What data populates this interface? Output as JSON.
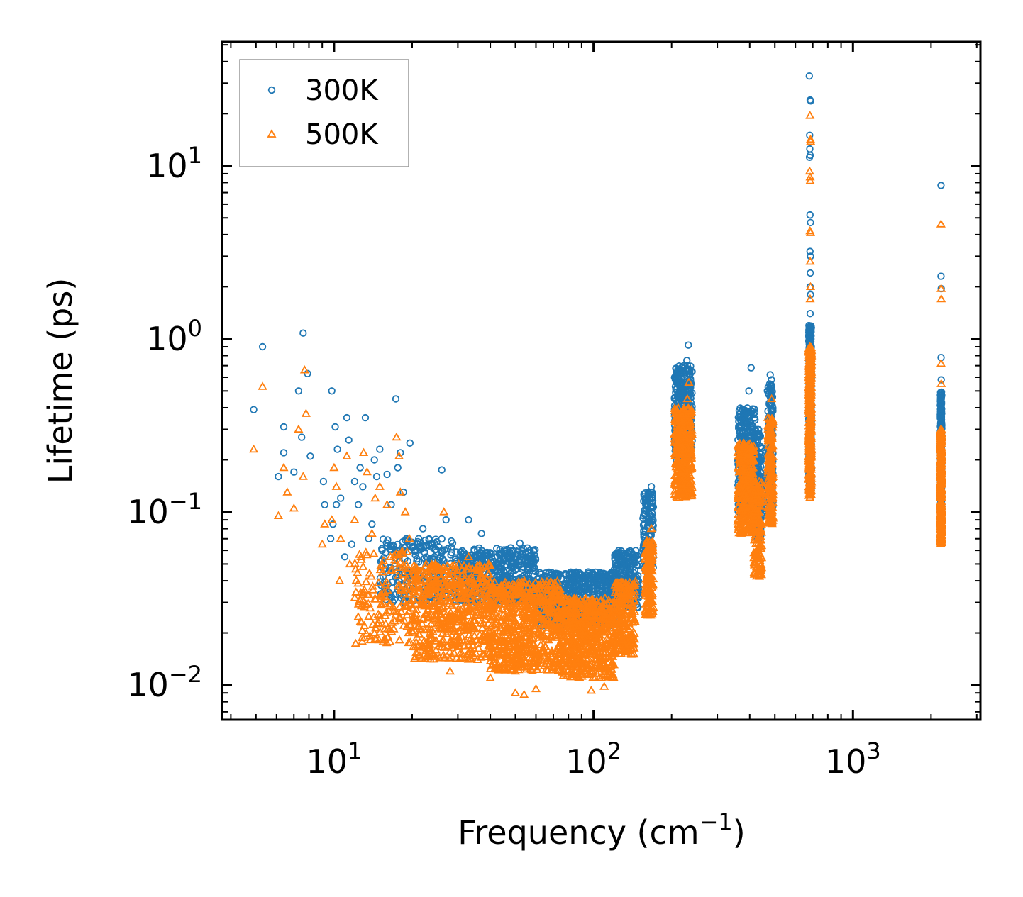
{
  "chart_data": {
    "type": "scatter",
    "xscale": "log",
    "yscale": "log",
    "xlim": [
      3.7,
      3100
    ],
    "ylim": [
      0.0063,
      52
    ],
    "xlabel": {
      "main": "Frequency (cm",
      "sup": "−1",
      "end": ")"
    },
    "ylabel": "Lifetime (ps)",
    "x_ticks": [
      {
        "value": 10,
        "base": "10",
        "exp": "1"
      },
      {
        "value": 100,
        "base": "10",
        "exp": "2"
      },
      {
        "value": 1000,
        "base": "10",
        "exp": "3"
      }
    ],
    "y_ticks": [
      {
        "value": 0.01,
        "base": "10",
        "exp": "−2"
      },
      {
        "value": 0.1,
        "base": "10",
        "exp": "−1"
      },
      {
        "value": 1,
        "base": "10",
        "exp": "0"
      },
      {
        "value": 10,
        "base": "10",
        "exp": "1"
      }
    ],
    "legend_position": "top-left",
    "series": [
      {
        "name": "300K",
        "color": "#1f77b4",
        "marker": "circle",
        "points": [
          [
            4.9,
            0.39
          ],
          [
            5.3,
            0.9
          ],
          [
            6.1,
            0.16
          ],
          [
            6.4,
            0.31
          ],
          [
            6.4,
            0.22
          ],
          [
            7.0,
            0.17
          ],
          [
            7.3,
            0.5
          ],
          [
            7.5,
            0.27
          ],
          [
            7.6,
            1.08
          ],
          [
            7.9,
            0.63
          ],
          [
            8.1,
            0.21
          ],
          [
            9.1,
            0.15
          ],
          [
            9.2,
            0.11
          ],
          [
            9.7,
            0.07
          ],
          [
            9.8,
            0.5
          ],
          [
            9.9,
            0.085
          ],
          [
            10.1,
            0.31
          ],
          [
            10.2,
            0.11
          ],
          [
            10.3,
            0.23
          ],
          [
            10.6,
            0.12
          ],
          [
            11.0,
            0.055
          ],
          [
            11.2,
            0.35
          ],
          [
            11.4,
            0.26
          ],
          [
            11.7,
            0.065
          ],
          [
            12.0,
            0.15
          ],
          [
            12.4,
            0.11
          ],
          [
            12.6,
            0.18
          ],
          [
            12.9,
            0.14
          ],
          [
            13.2,
            0.35
          ],
          [
            13.6,
            0.07
          ],
          [
            14.0,
            0.085
          ],
          [
            14.3,
            0.2
          ],
          [
            14.6,
            0.16
          ],
          [
            15.0,
            0.23
          ],
          [
            15.3,
            0.06
          ],
          [
            16.0,
            0.165
          ],
          [
            16.6,
            0.11
          ],
          [
            17.3,
            0.45
          ],
          [
            17.6,
            0.18
          ],
          [
            18.0,
            0.22
          ],
          [
            18.5,
            0.13
          ],
          [
            19.0,
            0.07
          ],
          [
            19.6,
            0.25
          ],
          [
            20.5,
            0.06
          ],
          [
            21.2,
            0.07
          ],
          [
            22.0,
            0.08
          ],
          [
            26.0,
            0.175
          ],
          [
            27.0,
            0.09
          ],
          [
            33.0,
            0.09
          ],
          [
            37.0,
            0.075
          ],
          [
            48.0,
            0.062
          ],
          [
            52.0,
            0.066
          ],
          [
            57.0,
            0.06
          ],
          [
            167,
            0.14
          ],
          [
            168,
            0.13
          ],
          [
            232,
            0.92
          ],
          [
            229,
            0.75
          ],
          [
            210,
            0.4
          ],
          [
            220,
            0.5
          ],
          [
            405,
            0.68
          ],
          [
            397,
            0.5
          ],
          [
            392,
            0.38
          ],
          [
            480,
            0.62
          ],
          [
            485,
            0.58
          ],
          [
            468,
            0.5
          ],
          [
            679,
            33
          ],
          [
            687,
            23.7
          ],
          [
            684,
            24.0
          ],
          [
            681,
            15
          ],
          [
            682,
            12.5
          ],
          [
            684,
            11.5
          ],
          [
            680,
            11.2
          ],
          [
            683,
            5.2
          ],
          [
            686,
            4.7
          ],
          [
            683,
            3.2
          ],
          [
            686,
            3.0
          ],
          [
            685,
            2.4
          ],
          [
            684,
            2.0
          ],
          [
            686,
            1.8
          ],
          [
            684,
            1.4
          ],
          [
            2185,
            7.7
          ],
          [
            2185,
            2.3
          ],
          [
            2188,
            1.95
          ],
          [
            2186,
            0.78
          ],
          [
            2188,
            0.58
          ]
        ],
        "bands": [
          {
            "xmin": 15,
            "xmax": 30,
            "ylo": 0.03,
            "yhi": 0.07,
            "n": 260
          },
          {
            "xmin": 30,
            "xmax": 60,
            "ylo": 0.03,
            "yhi": 0.062,
            "n": 520
          },
          {
            "xmin": 60,
            "xmax": 120,
            "ylo": 0.022,
            "yhi": 0.045,
            "n": 620
          },
          {
            "xmin": 120,
            "xmax": 150,
            "ylo": 0.028,
            "yhi": 0.06,
            "n": 220
          },
          {
            "xmin": 155,
            "xmax": 170,
            "ylo": 0.045,
            "yhi": 0.13,
            "n": 140
          },
          {
            "xmin": 205,
            "xmax": 240,
            "ylo": 0.2,
            "yhi": 0.7,
            "n": 340
          },
          {
            "xmin": 360,
            "xmax": 420,
            "ylo": 0.1,
            "yhi": 0.4,
            "n": 300
          },
          {
            "xmin": 420,
            "xmax": 445,
            "ylo": 0.07,
            "yhi": 0.3,
            "n": 140
          },
          {
            "xmin": 470,
            "xmax": 492,
            "ylo": 0.1,
            "yhi": 0.55,
            "n": 180
          },
          {
            "xmin": 676,
            "xmax": 692,
            "ylo": 0.13,
            "yhi": 1.2,
            "n": 420
          },
          {
            "xmin": 2170,
            "xmax": 2200,
            "ylo": 0.085,
            "yhi": 0.5,
            "n": 320
          }
        ]
      },
      {
        "name": "500K",
        "color": "#ff7f0e",
        "marker": "triangle",
        "points": [
          [
            4.9,
            0.23
          ],
          [
            5.3,
            0.53
          ],
          [
            6.1,
            0.095
          ],
          [
            6.4,
            0.18
          ],
          [
            6.6,
            0.13
          ],
          [
            7.0,
            0.105
          ],
          [
            7.3,
            0.3
          ],
          [
            7.6,
            0.16
          ],
          [
            7.7,
            0.66
          ],
          [
            7.8,
            0.37
          ],
          [
            9.0,
            0.065
          ],
          [
            9.2,
            0.085
          ],
          [
            9.8,
            0.09
          ],
          [
            10.0,
            0.18
          ],
          [
            10.2,
            0.14
          ],
          [
            10.5,
            0.04
          ],
          [
            10.6,
            0.07
          ],
          [
            11.2,
            0.21
          ],
          [
            11.5,
            0.05
          ],
          [
            12.0,
            0.09
          ],
          [
            12.7,
            0.055
          ],
          [
            13.0,
            0.22
          ],
          [
            13.4,
            0.17
          ],
          [
            14.0,
            0.075
          ],
          [
            14.4,
            0.12
          ],
          [
            15.0,
            0.14
          ],
          [
            16.0,
            0.11
          ],
          [
            16.5,
            0.055
          ],
          [
            17.4,
            0.27
          ],
          [
            17.8,
            0.21
          ],
          [
            18.0,
            0.13
          ],
          [
            18.8,
            0.1
          ],
          [
            19.5,
            0.07
          ],
          [
            24.0,
            0.015
          ],
          [
            26.5,
            0.1
          ],
          [
            28.0,
            0.012
          ],
          [
            33.0,
            0.055
          ],
          [
            40.0,
            0.011
          ],
          [
            50.0,
            0.009
          ],
          [
            54.0,
            0.0088
          ],
          [
            60.0,
            0.0095
          ],
          [
            98.0,
            0.0093
          ],
          [
            110,
            0.0098
          ],
          [
            167,
            0.08
          ],
          [
            169,
            0.06
          ],
          [
            233,
            0.56
          ],
          [
            220,
            0.3
          ],
          [
            230,
            0.45
          ],
          [
            215,
            0.15
          ],
          [
            395,
            0.22
          ],
          [
            402,
            0.15
          ],
          [
            486,
            0.45
          ],
          [
            470,
            0.35
          ],
          [
            683,
            19.5
          ],
          [
            686,
            14.2
          ],
          [
            687,
            13.8
          ],
          [
            681,
            9.3
          ],
          [
            684,
            8.6
          ],
          [
            684,
            8.2
          ],
          [
            683,
            4.2
          ],
          [
            686,
            4.1
          ],
          [
            684,
            2.8
          ],
          [
            686,
            2.0
          ],
          [
            684,
            1.7
          ],
          [
            2185,
            4.6
          ],
          [
            2187,
            1.95
          ],
          [
            2188,
            1.7
          ],
          [
            2186,
            0.72
          ],
          [
            2188,
            0.55
          ]
        ],
        "bands": [
          {
            "xmin": 12,
            "xmax": 20,
            "ylo": 0.017,
            "yhi": 0.06,
            "n": 160
          },
          {
            "xmin": 20,
            "xmax": 40,
            "ylo": 0.014,
            "yhi": 0.05,
            "n": 560
          },
          {
            "xmin": 40,
            "xmax": 75,
            "ylo": 0.012,
            "yhi": 0.04,
            "n": 640
          },
          {
            "xmin": 75,
            "xmax": 120,
            "ylo": 0.011,
            "yhi": 0.032,
            "n": 560
          },
          {
            "xmin": 120,
            "xmax": 145,
            "ylo": 0.015,
            "yhi": 0.04,
            "n": 220
          },
          {
            "xmin": 158,
            "xmax": 170,
            "ylo": 0.025,
            "yhi": 0.07,
            "n": 140
          },
          {
            "xmin": 205,
            "xmax": 240,
            "ylo": 0.12,
            "yhi": 0.4,
            "n": 340
          },
          {
            "xmin": 360,
            "xmax": 415,
            "ylo": 0.075,
            "yhi": 0.25,
            "n": 300
          },
          {
            "xmin": 415,
            "xmax": 445,
            "ylo": 0.042,
            "yhi": 0.15,
            "n": 160
          },
          {
            "xmin": 470,
            "xmax": 492,
            "ylo": 0.085,
            "yhi": 0.35,
            "n": 180
          },
          {
            "xmin": 676,
            "xmax": 692,
            "ylo": 0.12,
            "yhi": 0.9,
            "n": 420
          },
          {
            "xmin": 2170,
            "xmax": 2200,
            "ylo": 0.065,
            "yhi": 0.3,
            "n": 320
          }
        ]
      }
    ]
  }
}
